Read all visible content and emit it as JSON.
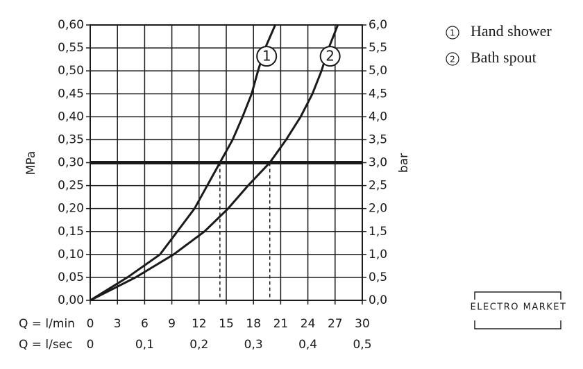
{
  "chart_data": {
    "type": "line",
    "xlabel": "Q = l/min",
    "x2label": "Q = l/sec",
    "ylabel": "MPa",
    "y2label": "bar",
    "xlim": [
      0,
      30
    ],
    "xticks": [
      0,
      3,
      6,
      9,
      12,
      15,
      18,
      21,
      24,
      27,
      30
    ],
    "x2lim": [
      0,
      0.5
    ],
    "x2ticks": [
      {
        "value": 0,
        "label": "0"
      },
      {
        "value": 0.1,
        "label": "0,1"
      },
      {
        "value": 0.2,
        "label": "0,2"
      },
      {
        "value": 0.3,
        "label": "0,3"
      },
      {
        "value": 0.4,
        "label": "0,4"
      },
      {
        "value": 0.5,
        "label": "0,5"
      }
    ],
    "ylim": [
      0,
      0.6
    ],
    "yticks": [
      {
        "value": 0,
        "label": "0,00"
      },
      {
        "value": 0.05,
        "label": "0,05"
      },
      {
        "value": 0.1,
        "label": "0,10"
      },
      {
        "value": 0.15,
        "label": "0,15"
      },
      {
        "value": 0.2,
        "label": "0,20"
      },
      {
        "value": 0.25,
        "label": "0,25"
      },
      {
        "value": 0.3,
        "label": "0,30"
      },
      {
        "value": 0.35,
        "label": "0,35"
      },
      {
        "value": 0.4,
        "label": "0,40"
      },
      {
        "value": 0.45,
        "label": "0,45"
      },
      {
        "value": 0.5,
        "label": "0,50"
      },
      {
        "value": 0.55,
        "label": "0,55"
      },
      {
        "value": 0.6,
        "label": "0,60"
      }
    ],
    "y2lim": [
      0,
      6
    ],
    "y2ticks": [
      {
        "value": 0,
        "label": "0,0"
      },
      {
        "value": 0.5,
        "label": "0,5"
      },
      {
        "value": 1,
        "label": "1,0"
      },
      {
        "value": 1.5,
        "label": "1,5"
      },
      {
        "value": 2,
        "label": "2,0"
      },
      {
        "value": 2.5,
        "label": "2,5"
      },
      {
        "value": 3,
        "label": "3,0"
      },
      {
        "value": 3.5,
        "label": "3,5"
      },
      {
        "value": 4,
        "label": "4,0"
      },
      {
        "value": 4.5,
        "label": "4,5"
      },
      {
        "value": 5,
        "label": "5,0"
      },
      {
        "value": 5.5,
        "label": "5,5"
      },
      {
        "value": 6,
        "label": "6,0"
      }
    ],
    "grid": true,
    "reference_y": 0.3,
    "crossings_x": [
      14.3,
      19.8
    ],
    "series": [
      {
        "name": "Hand shower",
        "marker_label": "1",
        "color": "#1a1a1a",
        "x": [
          0,
          4.1,
          7.7,
          9.6,
          11.5,
          12.9,
          14.3,
          15.7,
          16.8,
          17.8,
          18.5,
          19.3,
          20.4
        ],
        "values": [
          0,
          0.05,
          0.1,
          0.15,
          0.2,
          0.25,
          0.3,
          0.35,
          0.4,
          0.45,
          0.5,
          0.55,
          0.6
        ]
      },
      {
        "name": "Bath spout",
        "marker_label": "2",
        "color": "#1a1a1a",
        "x": [
          0,
          5.0,
          9.2,
          12.6,
          15.2,
          17.4,
          19.8,
          21.6,
          23.2,
          24.5,
          25.5,
          26.3,
          27.3
        ],
        "values": [
          0,
          0.05,
          0.1,
          0.15,
          0.2,
          0.25,
          0.3,
          0.35,
          0.4,
          0.45,
          0.5,
          0.55,
          0.6
        ]
      }
    ],
    "watermark": "ELECTRO MARKET"
  }
}
